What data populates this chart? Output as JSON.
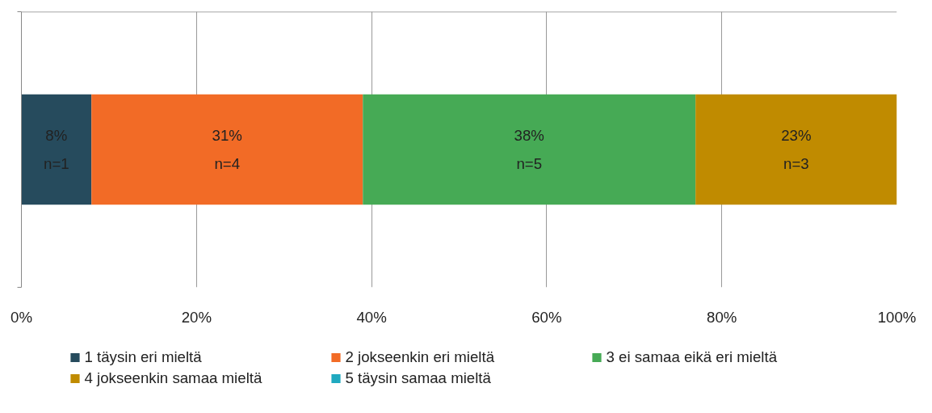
{
  "chart_data": {
    "type": "bar",
    "orientation": "horizontal",
    "stacked": true,
    "categories": [
      null
    ],
    "series": [
      {
        "name": "1 täysin eri mieltä",
        "color": "#264b5d",
        "values": [
          8
        ],
        "value_labels": [
          "8%\nn=1"
        ]
      },
      {
        "name": "2 jokseenkin eri mieltä",
        "color": "#f26b26",
        "values": [
          31
        ],
        "value_labels": [
          "31%\nn=4"
        ]
      },
      {
        "name": "3 ei samaa eikä eri mieltä",
        "color": "#46aa55",
        "values": [
          38
        ],
        "value_labels": [
          "38%\nn=5"
        ]
      },
      {
        "name": "4 jokseenkin samaa mieltä",
        "color": "#c08b00",
        "values": [
          23
        ],
        "value_labels": [
          "23%\nn=3"
        ]
      },
      {
        "name": "5 täysin samaa mieltä",
        "color": "#1fa9c0",
        "values": [
          0
        ],
        "value_labels": [
          null
        ]
      }
    ],
    "xlim": [
      0,
      100
    ],
    "xticks": [
      {
        "value": 0,
        "label": "0%"
      },
      {
        "value": 20,
        "label": "20%"
      },
      {
        "value": 40,
        "label": "40%"
      },
      {
        "value": 60,
        "label": "60%"
      },
      {
        "value": 80,
        "label": "80%"
      },
      {
        "value": 100,
        "label": "100%"
      }
    ],
    "grid": "x",
    "legend": "bottom",
    "tick_labels": "x"
  }
}
